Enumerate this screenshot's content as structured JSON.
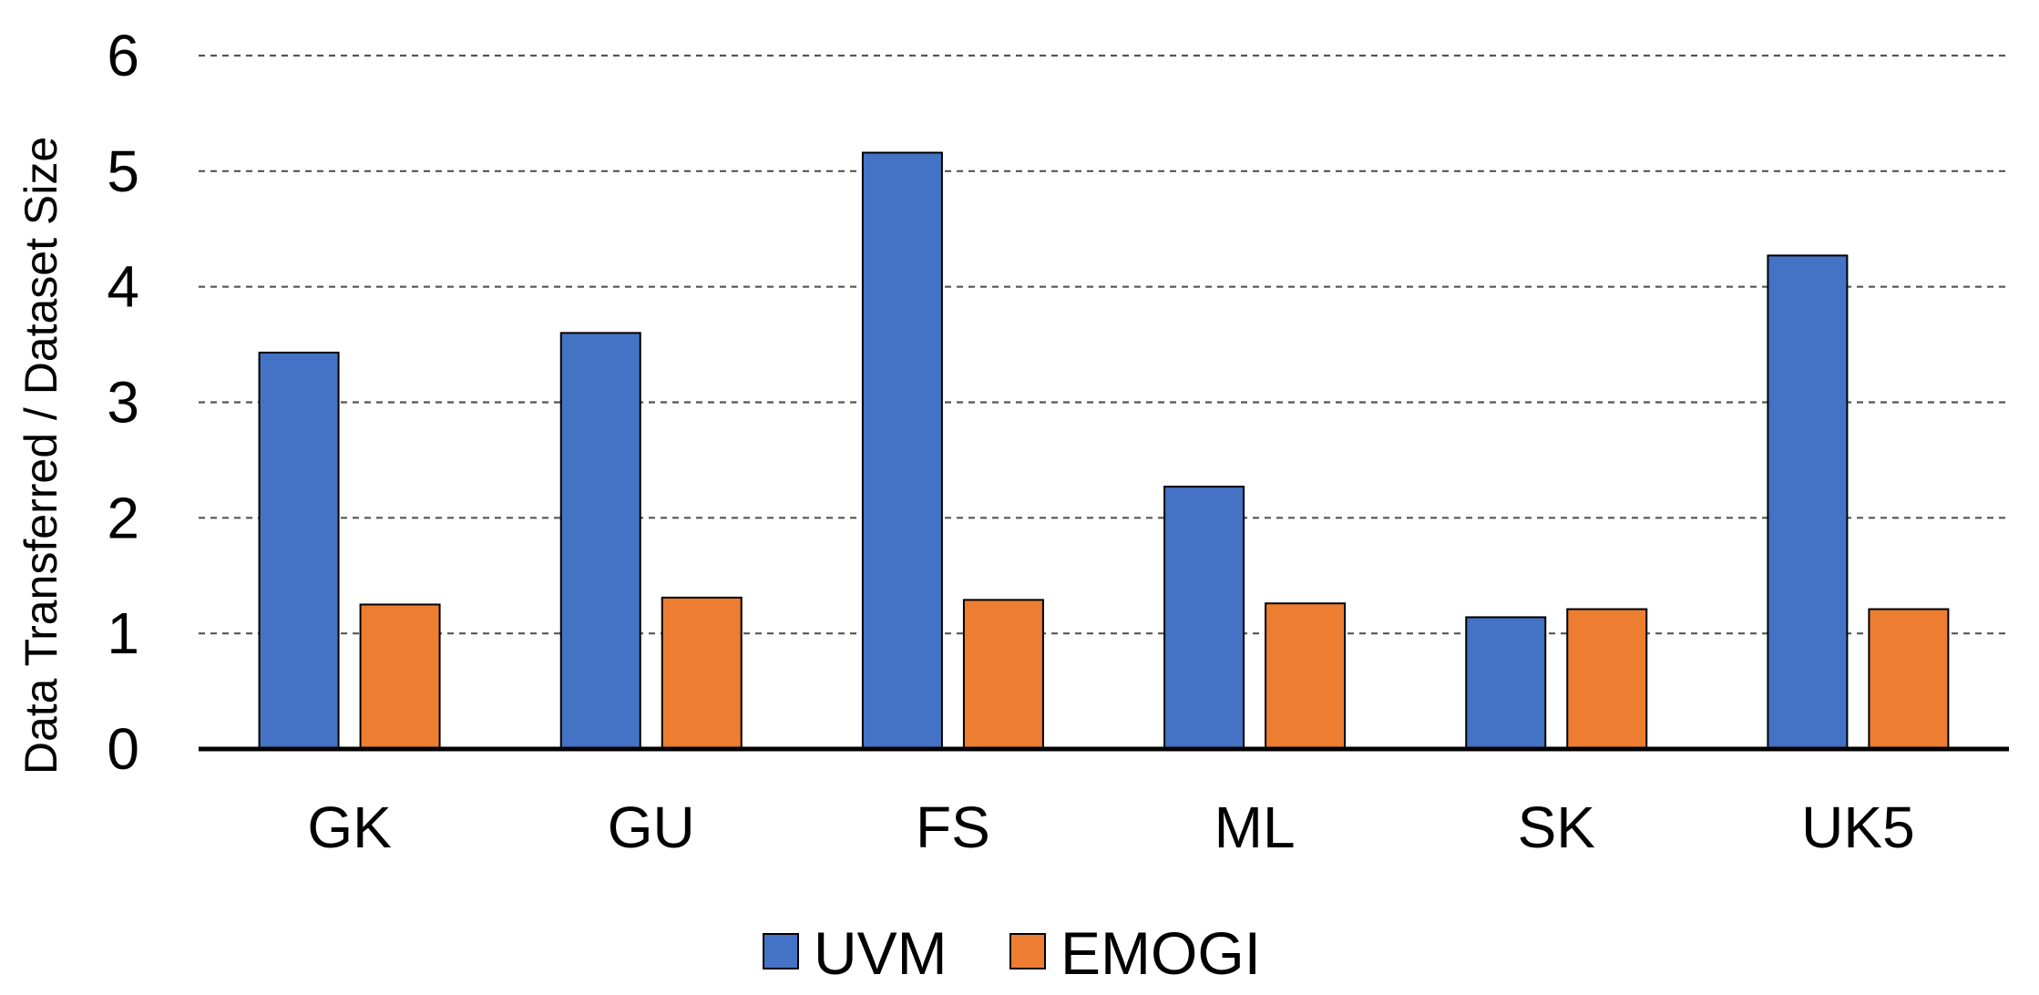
{
  "chart_data": {
    "type": "bar",
    "title": "",
    "xlabel": "",
    "ylabel": "Data Transferred / Dataset Size",
    "ylim": [
      0,
      6
    ],
    "yticks": [
      0,
      1,
      2,
      3,
      4,
      5,
      6
    ],
    "grid": true,
    "grid_style": "dashed",
    "legend_position": "bottom-center",
    "categories": [
      "GK",
      "GU",
      "FS",
      "ML",
      "SK",
      "UK5"
    ],
    "series": [
      {
        "name": "UVM",
        "color": "#4472C4",
        "values": [
          3.43,
          3.6,
          5.16,
          2.27,
          1.14,
          4.27
        ]
      },
      {
        "name": "EMOGI",
        "color": "#ED7D31",
        "values": [
          1.25,
          1.31,
          1.29,
          1.26,
          1.21,
          1.21
        ]
      }
    ]
  }
}
